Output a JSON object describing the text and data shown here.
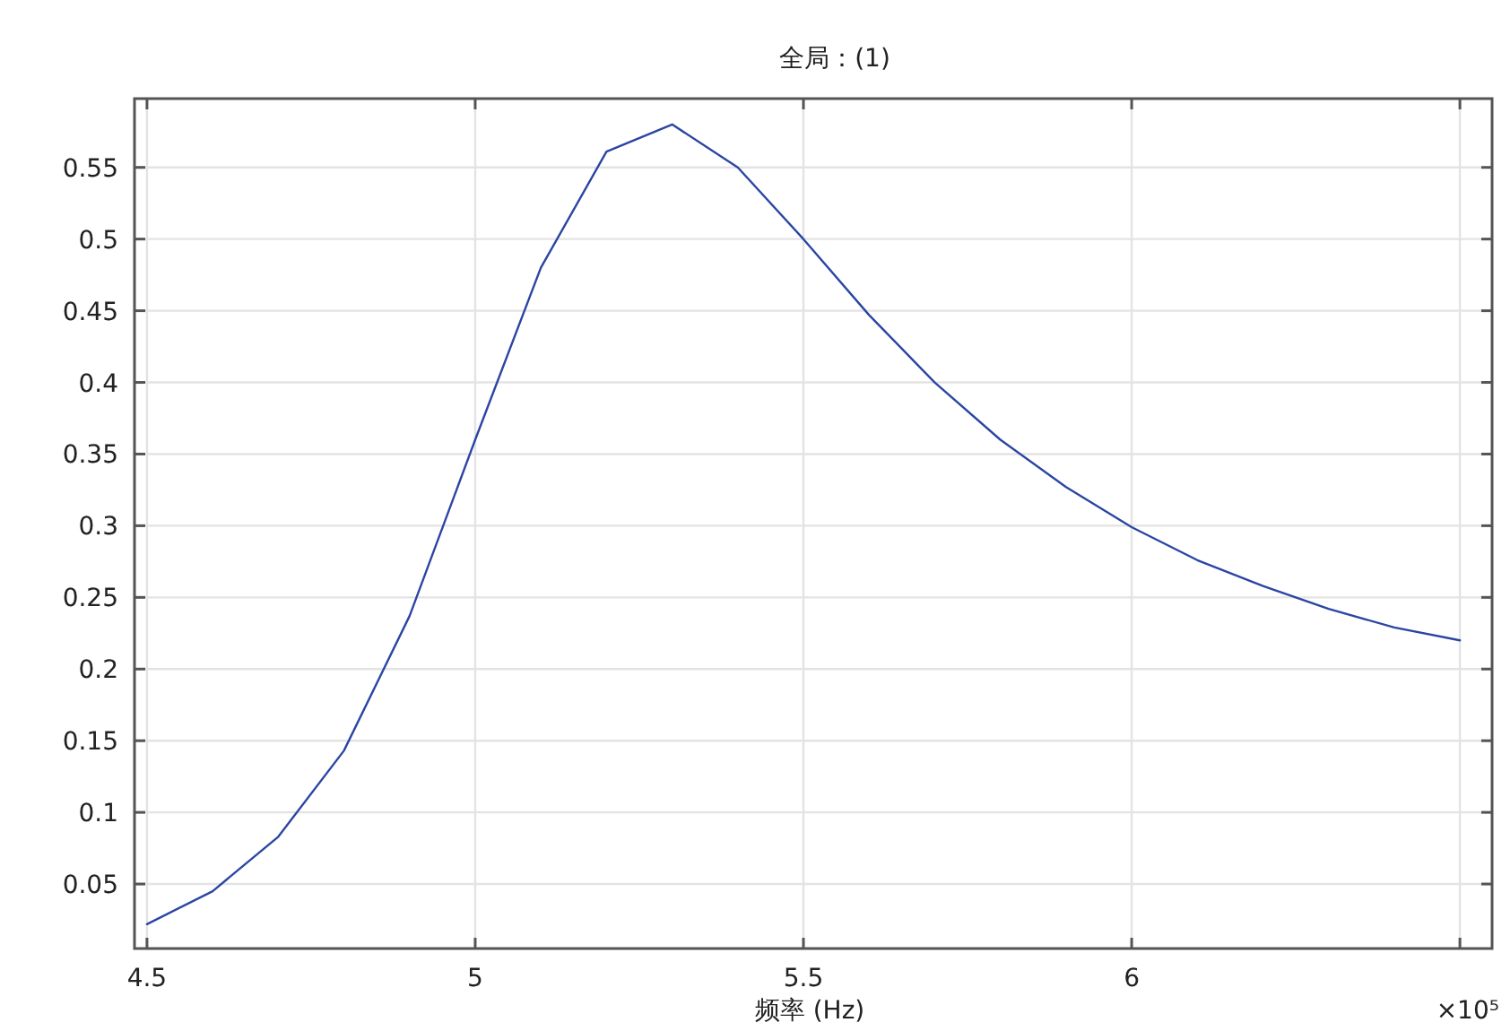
{
  "chart_data": {
    "type": "line",
    "title": "全局：(1)",
    "xlabel": "频率 (Hz)",
    "x": [
      4.5,
      4.6,
      4.7,
      4.8,
      4.9,
      5.0,
      5.1,
      5.2,
      5.3,
      5.4,
      5.5,
      5.6,
      5.7,
      5.8,
      5.9,
      6.0,
      6.1,
      6.2,
      6.3,
      6.4,
      6.5
    ],
    "series": [
      {
        "color": "#2b45a3",
        "values": [
          0.022,
          0.045,
          0.083,
          0.143,
          0.237,
          0.36,
          0.48,
          0.561,
          0.58,
          0.55,
          0.5,
          0.447,
          0.4,
          0.36,
          0.327,
          0.299,
          0.276,
          0.258,
          0.242,
          0.229,
          0.22
        ]
      }
    ],
    "xlim": [
      4.481,
      6.549
    ],
    "ylim": [
      0.005,
      0.598
    ],
    "xticks": [
      4.5,
      5,
      5.5,
      6,
      {
        "value": 6.5,
        "label": null
      }
    ],
    "annotations": [
      "×10⁵"
    ],
    "yticks": [
      0.05,
      0.1,
      0.15,
      0.2,
      0.25,
      0.3,
      0.35,
      0.4,
      0.45,
      0.5,
      0.55
    ],
    "grid": true,
    "marker": "none",
    "line_style": "solid"
  }
}
